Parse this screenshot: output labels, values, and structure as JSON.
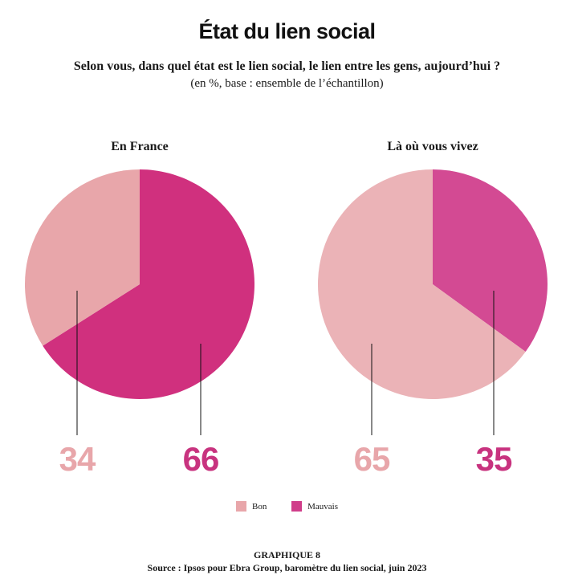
{
  "title": "État du lien social",
  "subtitle": "Selon vous, dans quel état est le lien social, le lien entre les gens, aujourd’hui ?",
  "note": "(en %, base : ensemble de l’échantillon)",
  "legend": [
    {
      "label": "Bon",
      "color": "#e8a6aa"
    },
    {
      "label": "Mauvais",
      "color": "#d03d8a"
    }
  ],
  "chart_data": [
    {
      "type": "pie",
      "title": "En France",
      "slices": [
        {
          "name": "Bon",
          "value": 34,
          "label": "34",
          "color": "#e8a6aa",
          "label_color": "#e8a6aa"
        },
        {
          "name": "Mauvais",
          "value": 66,
          "label": "66",
          "color": "#d0307e",
          "label_color": "#c8337f"
        }
      ]
    },
    {
      "type": "pie",
      "title": "Là où vous vivez",
      "slices": [
        {
          "name": "Bon",
          "value": 65,
          "label": "65",
          "color": "#ebb3b7",
          "label_color": "#e8a6aa"
        },
        {
          "name": "Mauvais",
          "value": 35,
          "label": "35",
          "color": "#d34a93",
          "label_color": "#c8337f"
        }
      ]
    }
  ],
  "footer": {
    "label": "GRAPHIQUE 8",
    "source": "Source : Ipsos pour Ebra Group, baromètre du lien social, juin 2023"
  }
}
